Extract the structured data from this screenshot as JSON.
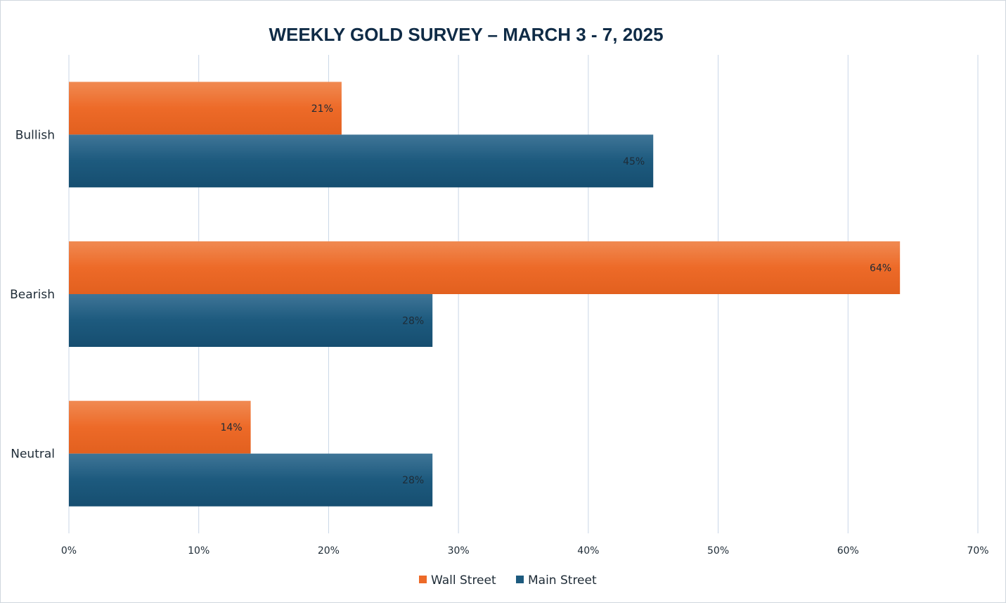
{
  "chart_data": {
    "type": "bar",
    "orientation": "horizontal",
    "title": "WEEKLY GOLD SURVEY – MARCH 3 - 7, 2025",
    "categories": [
      "Bullish",
      "Bearish",
      "Neutral"
    ],
    "series": [
      {
        "name": "Wall Street",
        "color": "#ed6a28",
        "values": [
          21,
          64,
          14
        ],
        "labels": [
          "21%",
          "64%",
          "14%"
        ]
      },
      {
        "name": "Main Street",
        "color": "#1d5a7e",
        "values": [
          45,
          28,
          28
        ],
        "labels": [
          "45%",
          "28%",
          "28%"
        ]
      }
    ],
    "xlim": [
      0,
      70
    ],
    "xticks": [
      {
        "value": 0,
        "label": "0%"
      },
      {
        "value": 10,
        "label": "10%"
      },
      {
        "value": 20,
        "label": "20%"
      },
      {
        "value": 30,
        "label": "30%"
      },
      {
        "value": 40,
        "label": "40%"
      },
      {
        "value": 50,
        "label": "50%"
      },
      {
        "value": 60,
        "label": "60%"
      },
      {
        "value": 70,
        "label": "70%"
      }
    ],
    "grid": true,
    "legend_position": "bottom"
  }
}
